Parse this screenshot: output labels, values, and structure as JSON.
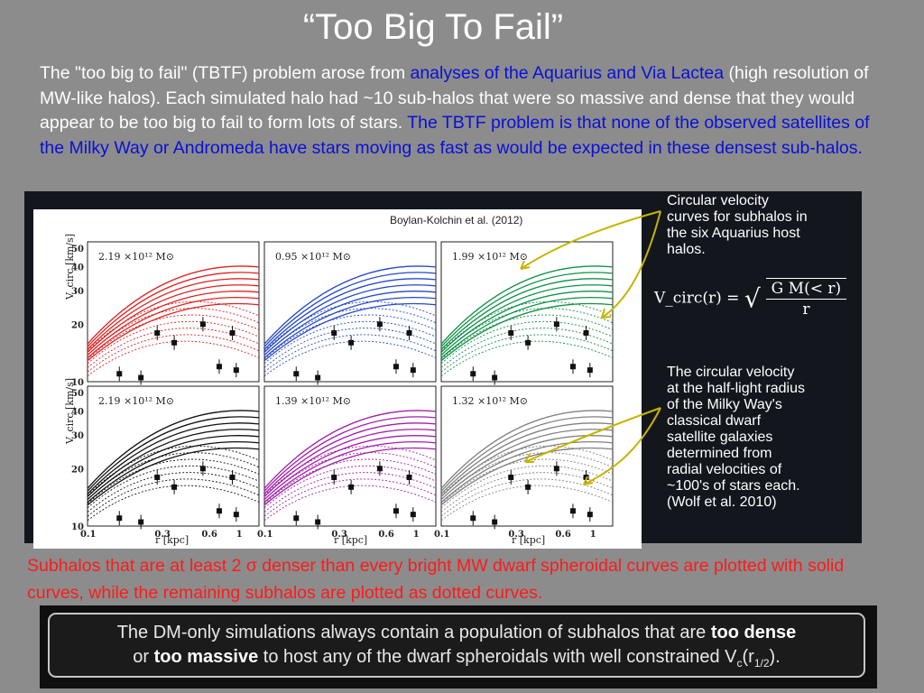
{
  "title": "“Too Big To Fail”",
  "intro": {
    "part1": "The \"too big to fail\" (TBTF) problem arose from ",
    "part2_blue": "analyses of the Aquarius and Via Lactea",
    "part3": " (high resolution of MW-like halos).  Each simulated halo had ~10 sub-halos that were so massive and dense that they would appear to be too big to fail to form lots of stars. ",
    "part4_blue": "The TBTF problem is that none of the observed satellites of the Milky Way or Andromeda have stars moving as fast as would be expected in these densest sub-halos."
  },
  "figure": {
    "credit": "Boylan-Kolchin et al. (2012)",
    "ylabel": "V_circ [km/s]",
    "xlabel": "r  [kpc]",
    "yticks": [
      "50",
      "40",
      "30",
      "20",
      "10"
    ],
    "xticks": [
      "0.1",
      "0.3",
      "0.6",
      "1.0"
    ],
    "panels": [
      {
        "mass_label": "2.19 ×10¹² M⊙",
        "color": "#e02020"
      },
      {
        "mass_label": "0.95 ×10¹² M⊙",
        "color": "#2848c8"
      },
      {
        "mass_label": "1.99 ×10¹² M⊙",
        "color": "#109048"
      },
      {
        "mass_label": "2.19 ×10¹² M⊙",
        "color": "#111111"
      },
      {
        "mass_label": "1.39 ×10¹² M⊙",
        "color": "#a020a8"
      },
      {
        "mass_label": "1.32 ×10¹² M⊙",
        "color": "#808080"
      }
    ]
  },
  "notes": {
    "top": [
      "Circular velocity",
      "curves for subhalos in",
      "the six Aquarius host",
      "halos."
    ],
    "equation_lhs": "V_circ(r) =",
    "equation_num": "G M(< r)",
    "equation_den": "r",
    "bottom": [
      "The circular velocity",
      "at the half-light radius",
      "of the Milky Way's",
      "classical dwarf",
      "satellite galaxies",
      "determined from",
      "radial velocities of",
      "~100's of stars each.",
      "(Wolf et al. 2010)"
    ]
  },
  "caption": "Subhalos that are at least 2 σ denser than every bright MW dwarf spheroidal curves are plotted with solid curves, while the remaining subhalos are plotted as dotted curves.",
  "box": {
    "t1": "The DM-only simulations always contain a population of subhalos that are ",
    "b1": "too dense",
    "t2": "or ",
    "b2": "too massive",
    "t3": " to host any of the dwarf spheroidals with well constrained V",
    "sub1": "c",
    "t4": "(r",
    "sub2": "1/2",
    "t5": ")."
  },
  "colors": {
    "background": "#8c8c8c",
    "intro_highlight": "#0a10d8",
    "caption": "#ff1a1a",
    "arrow": "#c8b400"
  }
}
